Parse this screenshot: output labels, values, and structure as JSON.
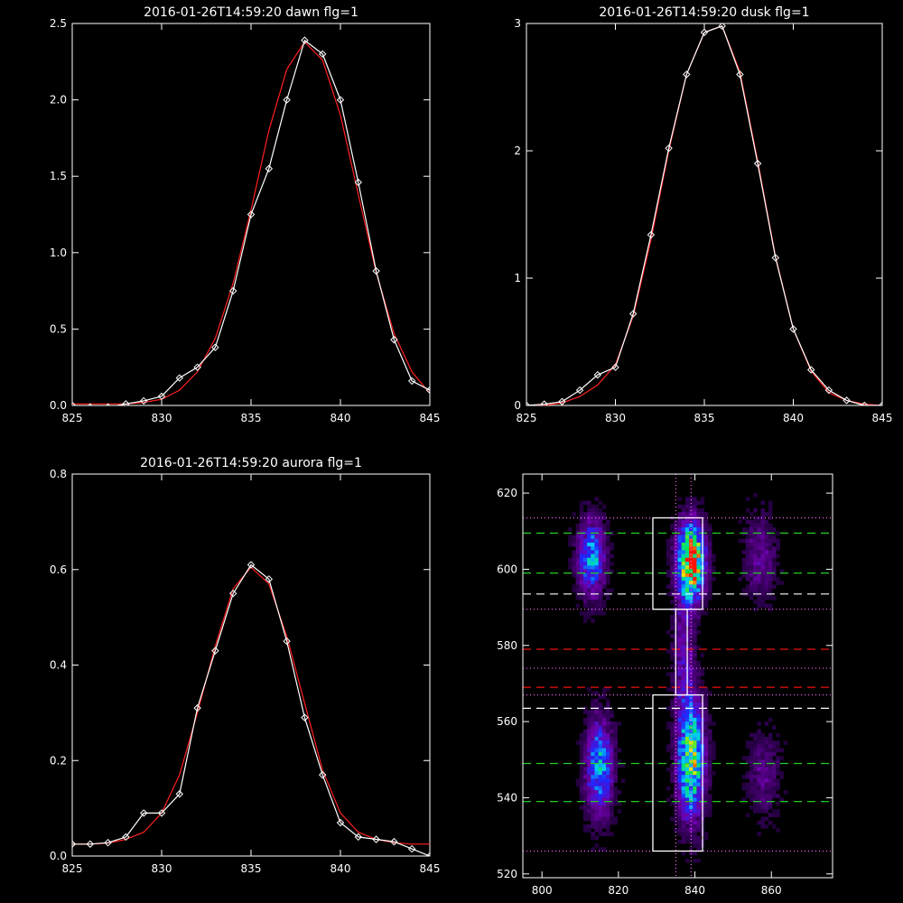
{
  "chart_data": [
    {
      "type": "line",
      "title": "2016-01-26T14:59:20 dawn flg=1",
      "xlim": [
        825,
        845
      ],
      "ylim": [
        0,
        2.5
      ],
      "xticks": [
        825,
        830,
        835,
        840,
        845
      ],
      "yticks": [
        0.0,
        0.5,
        1.0,
        1.5,
        2.0,
        2.5
      ],
      "ytick_labels": [
        "0.0",
        "0.5",
        "1.0",
        "1.5",
        "2.0",
        "2.5"
      ],
      "series": [
        {
          "color": "#ffffff",
          "markers": "diamond",
          "x": [
            825,
            826,
            827,
            828,
            829,
            830,
            831,
            832,
            833,
            834,
            835,
            836,
            837,
            838,
            839,
            840,
            841,
            842,
            843,
            844,
            845
          ],
          "y": [
            0.0,
            -0.01,
            -0.01,
            0.01,
            0.03,
            0.06,
            0.18,
            0.25,
            0.38,
            0.75,
            1.25,
            1.55,
            2.0,
            2.39,
            2.3,
            2.0,
            1.46,
            0.88,
            0.43,
            0.16,
            0.1
          ]
        },
        {
          "color": "#ff2020",
          "markers": "none",
          "x": [
            825,
            826,
            827,
            828,
            829,
            830,
            831,
            832,
            833,
            834,
            835,
            836,
            837,
            838,
            839,
            840,
            841,
            842,
            843,
            844,
            845
          ],
          "y": [
            0.01,
            0.01,
            0.01,
            0.01,
            0.02,
            0.04,
            0.1,
            0.22,
            0.44,
            0.8,
            1.28,
            1.8,
            2.2,
            2.38,
            2.26,
            1.9,
            1.38,
            0.87,
            0.47,
            0.22,
            0.08
          ]
        }
      ]
    },
    {
      "type": "line",
      "title": "2016-01-26T14:59:20 dusk flg=1",
      "xlim": [
        825,
        845
      ],
      "ylim": [
        0,
        3
      ],
      "xticks": [
        825,
        830,
        835,
        840,
        845
      ],
      "yticks": [
        0,
        1,
        2,
        3
      ],
      "ytick_labels": [
        "0",
        "1",
        "2",
        "3"
      ],
      "series": [
        {
          "color": "#ffffff",
          "markers": "diamond",
          "x": [
            825,
            826,
            827,
            828,
            829,
            830,
            831,
            832,
            833,
            834,
            835,
            836,
            837,
            838,
            839,
            840,
            841,
            842,
            843,
            844,
            845
          ],
          "y": [
            0.0,
            0.01,
            0.03,
            0.12,
            0.24,
            0.3,
            0.72,
            1.34,
            2.02,
            2.6,
            2.93,
            2.98,
            2.6,
            1.9,
            1.16,
            0.6,
            0.28,
            0.12,
            0.04,
            0.0,
            0.0
          ]
        },
        {
          "color": "#ff2020",
          "markers": "none",
          "x": [
            825,
            826,
            827,
            828,
            829,
            830,
            831,
            832,
            833,
            834,
            835,
            836,
            837,
            838,
            839,
            840,
            841,
            842,
            843,
            844,
            845
          ],
          "y": [
            0.0,
            0.0,
            0.02,
            0.07,
            0.16,
            0.32,
            0.7,
            1.3,
            2.0,
            2.6,
            2.93,
            2.98,
            2.62,
            1.92,
            1.17,
            0.6,
            0.27,
            0.1,
            0.04,
            0.01,
            0.0
          ]
        }
      ]
    },
    {
      "type": "line",
      "title": "2016-01-26T14:59:20 aurora flg=1",
      "xlim": [
        825,
        845
      ],
      "ylim": [
        0,
        0.8
      ],
      "xticks": [
        825,
        830,
        835,
        840,
        845
      ],
      "yticks": [
        0.0,
        0.2,
        0.4,
        0.6,
        0.8
      ],
      "ytick_labels": [
        "0.0",
        "0.2",
        "0.4",
        "0.6",
        "0.8"
      ],
      "series": [
        {
          "color": "#ffffff",
          "markers": "diamond",
          "x": [
            825,
            826,
            827,
            828,
            829,
            830,
            831,
            832,
            833,
            834,
            835,
            836,
            837,
            838,
            839,
            840,
            841,
            842,
            843,
            844,
            845
          ],
          "y": [
            0.025,
            0.025,
            0.028,
            0.04,
            0.09,
            0.09,
            0.13,
            0.31,
            0.43,
            0.55,
            0.61,
            0.58,
            0.45,
            0.29,
            0.17,
            0.07,
            0.04,
            0.035,
            0.03,
            0.015,
            0.0
          ]
        },
        {
          "color": "#ff2020",
          "markers": "none",
          "x": [
            825,
            826,
            827,
            828,
            829,
            830,
            831,
            832,
            833,
            834,
            835,
            836,
            837,
            838,
            839,
            840,
            841,
            842,
            843,
            844,
            845
          ],
          "y": [
            0.025,
            0.025,
            0.027,
            0.035,
            0.05,
            0.09,
            0.17,
            0.3,
            0.44,
            0.56,
            0.605,
            0.57,
            0.46,
            0.32,
            0.18,
            0.09,
            0.05,
            0.035,
            0.028,
            0.025,
            0.025
          ]
        }
      ]
    },
    {
      "type": "heatmap",
      "title": "",
      "xlim": [
        795,
        876
      ],
      "ylim": [
        519,
        625
      ],
      "xticks": [
        800,
        820,
        840,
        860
      ],
      "yticks": [
        520,
        540,
        560,
        580,
        600,
        620
      ],
      "colormap": "rainbow",
      "blobs": [
        {
          "x": 813,
          "y": 603,
          "sx": 2.5,
          "sy": 7,
          "amp": 0.55
        },
        {
          "x": 815,
          "y": 548,
          "sx": 2.5,
          "sy": 9,
          "amp": 0.55
        },
        {
          "x": 839,
          "y": 602,
          "sx": 2.5,
          "sy": 7,
          "amp": 1.0
        },
        {
          "x": 839,
          "y": 550,
          "sx": 2.5,
          "sy": 11,
          "amp": 0.75
        },
        {
          "x": 837,
          "y": 578,
          "sx": 2,
          "sy": 12,
          "amp": 0.25
        },
        {
          "x": 857,
          "y": 603,
          "sx": 3,
          "sy": 8,
          "amp": 0.22
        },
        {
          "x": 858,
          "y": 546,
          "sx": 3,
          "sy": 8,
          "amp": 0.2
        }
      ],
      "boxes": [
        {
          "x0": 829,
          "x1": 842,
          "y0": 589.5,
          "y1": 613.5
        },
        {
          "x0": 829,
          "x1": 842,
          "y0": 526,
          "y1": 567
        },
        {
          "x0": 835,
          "x1": 838,
          "y0": 567,
          "y1": 589.5
        }
      ],
      "hlines": [
        {
          "y": 609.5,
          "color": "#22cc22",
          "style": "dashed"
        },
        {
          "y": 599,
          "color": "#22cc22",
          "style": "dashed"
        },
        {
          "y": 593.5,
          "color": "#ffffff",
          "style": "dashed"
        },
        {
          "y": 613.5,
          "color": "#ff66ff",
          "style": "dotted"
        },
        {
          "y": 589.5,
          "color": "#ff66ff",
          "style": "dotted"
        },
        {
          "y": 579,
          "color": "#ee1111",
          "style": "dashed"
        },
        {
          "y": 569,
          "color": "#ee1111",
          "style": "dashed"
        },
        {
          "y": 574,
          "color": "#ff66ff",
          "style": "dotted"
        },
        {
          "y": 567,
          "color": "#ff66ff",
          "style": "dotted"
        },
        {
          "y": 563.5,
          "color": "#ffffff",
          "style": "dashed"
        },
        {
          "y": 549,
          "color": "#22cc22",
          "style": "dashed"
        },
        {
          "y": 539,
          "color": "#22cc22",
          "style": "dashed"
        },
        {
          "y": 526,
          "color": "#ff66ff",
          "style": "dotted"
        }
      ],
      "vlines": [
        {
          "x": 835,
          "color": "#ff66ff",
          "style": "dotted"
        },
        {
          "x": 839,
          "color": "#ff66ff",
          "style": "dotted"
        }
      ]
    }
  ]
}
